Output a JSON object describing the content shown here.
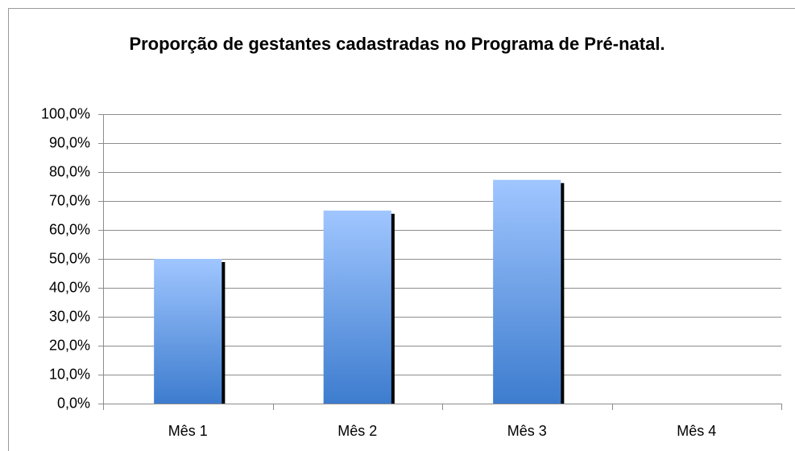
{
  "chart_data": {
    "type": "bar",
    "title": "Proporção de gestantes cadastradas no Programa de Pré-natal.",
    "categories": [
      "Mês 1",
      "Mês 2",
      "Mês 3",
      "Mês 4"
    ],
    "values": [
      50.0,
      66.7,
      77.3,
      0
    ],
    "color": "#4f8ad8",
    "ylim": [
      0,
      100
    ],
    "yticks": [
      {
        "value": 0,
        "label": "0,0%"
      },
      {
        "value": 10,
        "label": "10,0%"
      },
      {
        "value": 20,
        "label": "20,0%"
      },
      {
        "value": 30,
        "label": "30,0%"
      },
      {
        "value": 40,
        "label": "40,0%"
      },
      {
        "value": 50,
        "label": "50,0%"
      },
      {
        "value": 60,
        "label": "60,0%"
      },
      {
        "value": 70,
        "label": "70,0%"
      },
      {
        "value": 80,
        "label": "80,0%"
      },
      {
        "value": 90,
        "label": "90,0%"
      },
      {
        "value": 100,
        "label": "100,0%"
      }
    ],
    "grid": true
  }
}
